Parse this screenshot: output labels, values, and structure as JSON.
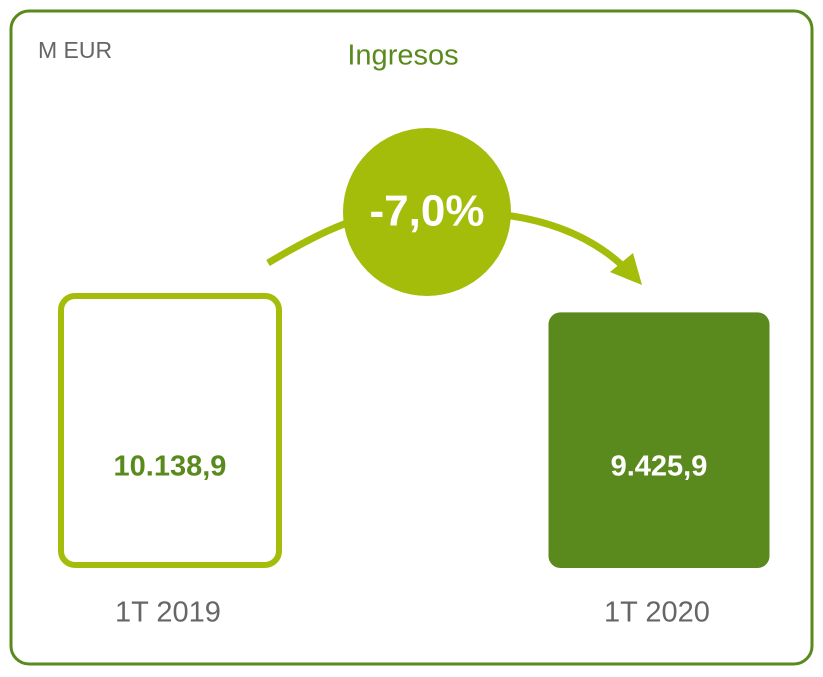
{
  "chart_data": {
    "type": "bar",
    "title": "Ingresos",
    "unit_label": "M EUR",
    "categories": [
      "1T 2019",
      "1T 2020"
    ],
    "values": [
      10138.9,
      9425.9
    ],
    "value_labels": [
      "10.138,9",
      "9.425,9"
    ],
    "colors": [
      "#a4bc0a",
      "#5a8a1e"
    ],
    "annotation": "-7,0%"
  }
}
